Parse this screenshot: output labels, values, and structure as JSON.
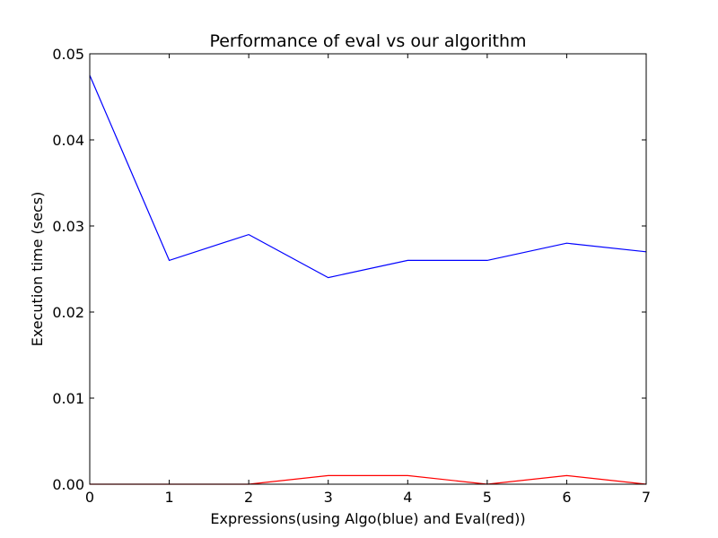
{
  "chart_data": {
    "type": "line",
    "title": "Performance of eval vs our algorithm",
    "xlabel": "Expressions(using Algo(blue) and Eval(red))",
    "ylabel": "Execution time (secs)",
    "x": [
      0,
      1,
      2,
      3,
      4,
      5,
      6,
      7
    ],
    "xlim": [
      0,
      7
    ],
    "ylim": [
      0,
      0.05
    ],
    "xticks": [
      0,
      1,
      2,
      3,
      4,
      5,
      6,
      7
    ],
    "xtick_labels": [
      "0",
      "1",
      "2",
      "3",
      "4",
      "5",
      "6",
      "7"
    ],
    "yticks": [
      0,
      0.01,
      0.02,
      0.03,
      0.04,
      0.05
    ],
    "ytick_labels": [
      "0.00",
      "0.01",
      "0.02",
      "0.03",
      "0.04",
      "0.05"
    ],
    "grid": false,
    "legend": "none",
    "series": [
      {
        "color": "#0000ff",
        "values": [
          0.0475,
          0.026,
          0.029,
          0.024,
          0.026,
          0.026,
          0.028,
          0.027
        ]
      },
      {
        "color": "#ff0000",
        "values": [
          0.0,
          0.0,
          0.0,
          0.001,
          0.001,
          0.0,
          0.001,
          0.0
        ]
      }
    ]
  }
}
